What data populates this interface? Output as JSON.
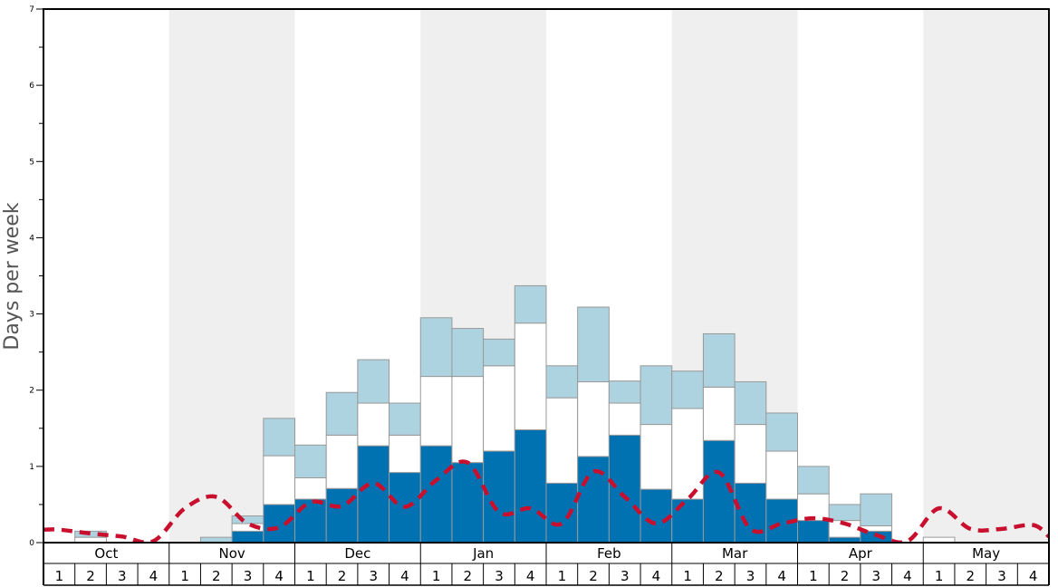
{
  "chart_data": {
    "type": "bar",
    "title": "",
    "ylabel": "Days per week",
    "xlabel": "",
    "ylim": [
      0,
      7
    ],
    "yticks": [
      0,
      1,
      2,
      3,
      4,
      5,
      6,
      7
    ],
    "months": [
      "Oct",
      "Nov",
      "Dec",
      "Jan",
      "Feb",
      "Mar",
      "Apr",
      "May"
    ],
    "week_labels": [
      "1",
      "2",
      "3",
      "4"
    ],
    "categories": [
      "Oct 1",
      "Oct 2",
      "Oct 3",
      "Oct 4",
      "Nov 1",
      "Nov 2",
      "Nov 3",
      "Nov 4",
      "Dec 1",
      "Dec 2",
      "Dec 3",
      "Dec 4",
      "Jan 1",
      "Jan 2",
      "Jan 3",
      "Jan 4",
      "Feb 1",
      "Feb 2",
      "Feb 3",
      "Feb 4",
      "Mar 1",
      "Mar 2",
      "Mar 3",
      "Mar 4",
      "Apr 1",
      "Apr 2",
      "Apr 3",
      "Apr 4",
      "May 1",
      "May 2",
      "May 3",
      "May 4"
    ],
    "series": [
      {
        "color": "#0072b2",
        "values": [
          0,
          0,
          0,
          0,
          0,
          0,
          0.15,
          0.5,
          0.57,
          0.71,
          1.27,
          0.92,
          1.27,
          1.05,
          1.2,
          1.48,
          0.78,
          1.13,
          1.41,
          0.7,
          0.57,
          1.34,
          0.78,
          0.57,
          0.29,
          0.07,
          0.15,
          0,
          0,
          0,
          0,
          0
        ]
      },
      {
        "color": "#ffffff",
        "values": [
          0,
          0.07,
          0,
          0,
          0,
          0,
          0.1,
          0.64,
          0.28,
          0.7,
          0.56,
          0.49,
          0.91,
          1.13,
          1.12,
          1.4,
          1.12,
          0.98,
          0.42,
          0.85,
          1.19,
          0.7,
          0.77,
          0.63,
          0.35,
          0.22,
          0.07,
          0,
          0.07,
          0,
          0,
          0
        ]
      },
      {
        "color": "#aed3e0",
        "values": [
          0,
          0.08,
          0,
          0,
          0,
          0.07,
          0.1,
          0.49,
          0.43,
          0.56,
          0.57,
          0.42,
          0.77,
          0.63,
          0.35,
          0.49,
          0.42,
          0.98,
          0.29,
          0.77,
          0.49,
          0.7,
          0.56,
          0.5,
          0.36,
          0.21,
          0.42,
          0,
          0,
          0,
          0,
          0
        ]
      }
    ],
    "line": {
      "color": "#c8102e",
      "style": "dashed",
      "values": [
        0.17,
        0.12,
        0.08,
        0.02,
        0.45,
        0.6,
        0.25,
        0.2,
        0.53,
        0.48,
        0.78,
        0.47,
        0.82,
        1.05,
        0.4,
        0.45,
        0.25,
        0.93,
        0.6,
        0.25,
        0.57,
        0.92,
        0.18,
        0.25,
        0.32,
        0.25,
        0.1,
        0.02,
        0.45,
        0.18,
        0.18,
        0.23
      ]
    },
    "line_end_value": 0.08,
    "shaded_months": [
      "Nov",
      "Jan",
      "Mar",
      "May"
    ],
    "shade_color": "#efefef"
  }
}
